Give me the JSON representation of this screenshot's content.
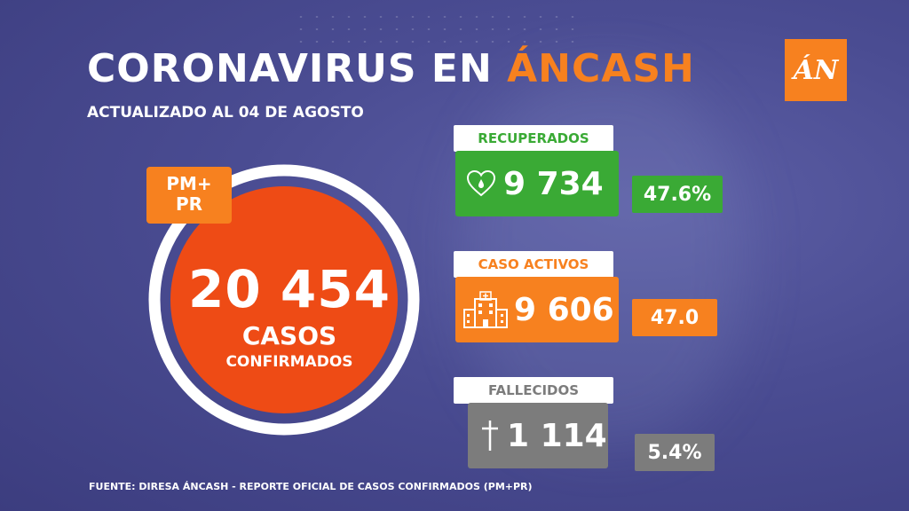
{
  "header": {
    "title_main": "CORONAVIRUS EN ",
    "title_accent": "ÁNCASH",
    "subtitle": "ACTUALIZADO AL 04 DE AGOSTO",
    "logo_text": "ÁN"
  },
  "colors": {
    "orange": "#f7811f",
    "red_orange": "#ee4b15",
    "green": "#3aaa35",
    "gray": "#7c7c7c",
    "background": "#4a4c92"
  },
  "total": {
    "badge": [
      "PM+",
      "PR"
    ],
    "value": "20 454",
    "label1": "CASOS",
    "label2": "CONFIRMADOS"
  },
  "recuperados": {
    "label": "RECUPERADOS",
    "value": "9 734",
    "percent": "47.6%",
    "icon": "heart-drop-icon"
  },
  "activos": {
    "label": "CASO ACTIVOS",
    "value": "9 606",
    "percent": "47.0",
    "icon": "hospital-icon"
  },
  "fallecidos": {
    "label": "FALLECIDOS",
    "value": "1 114",
    "percent": "5.4%",
    "icon": "cross-icon"
  },
  "footer": "FUENTE: DIRESA ÁNCASH - REPORTE OFICIAL DE CASOS CONFIRMADOS (PM+PR)"
}
